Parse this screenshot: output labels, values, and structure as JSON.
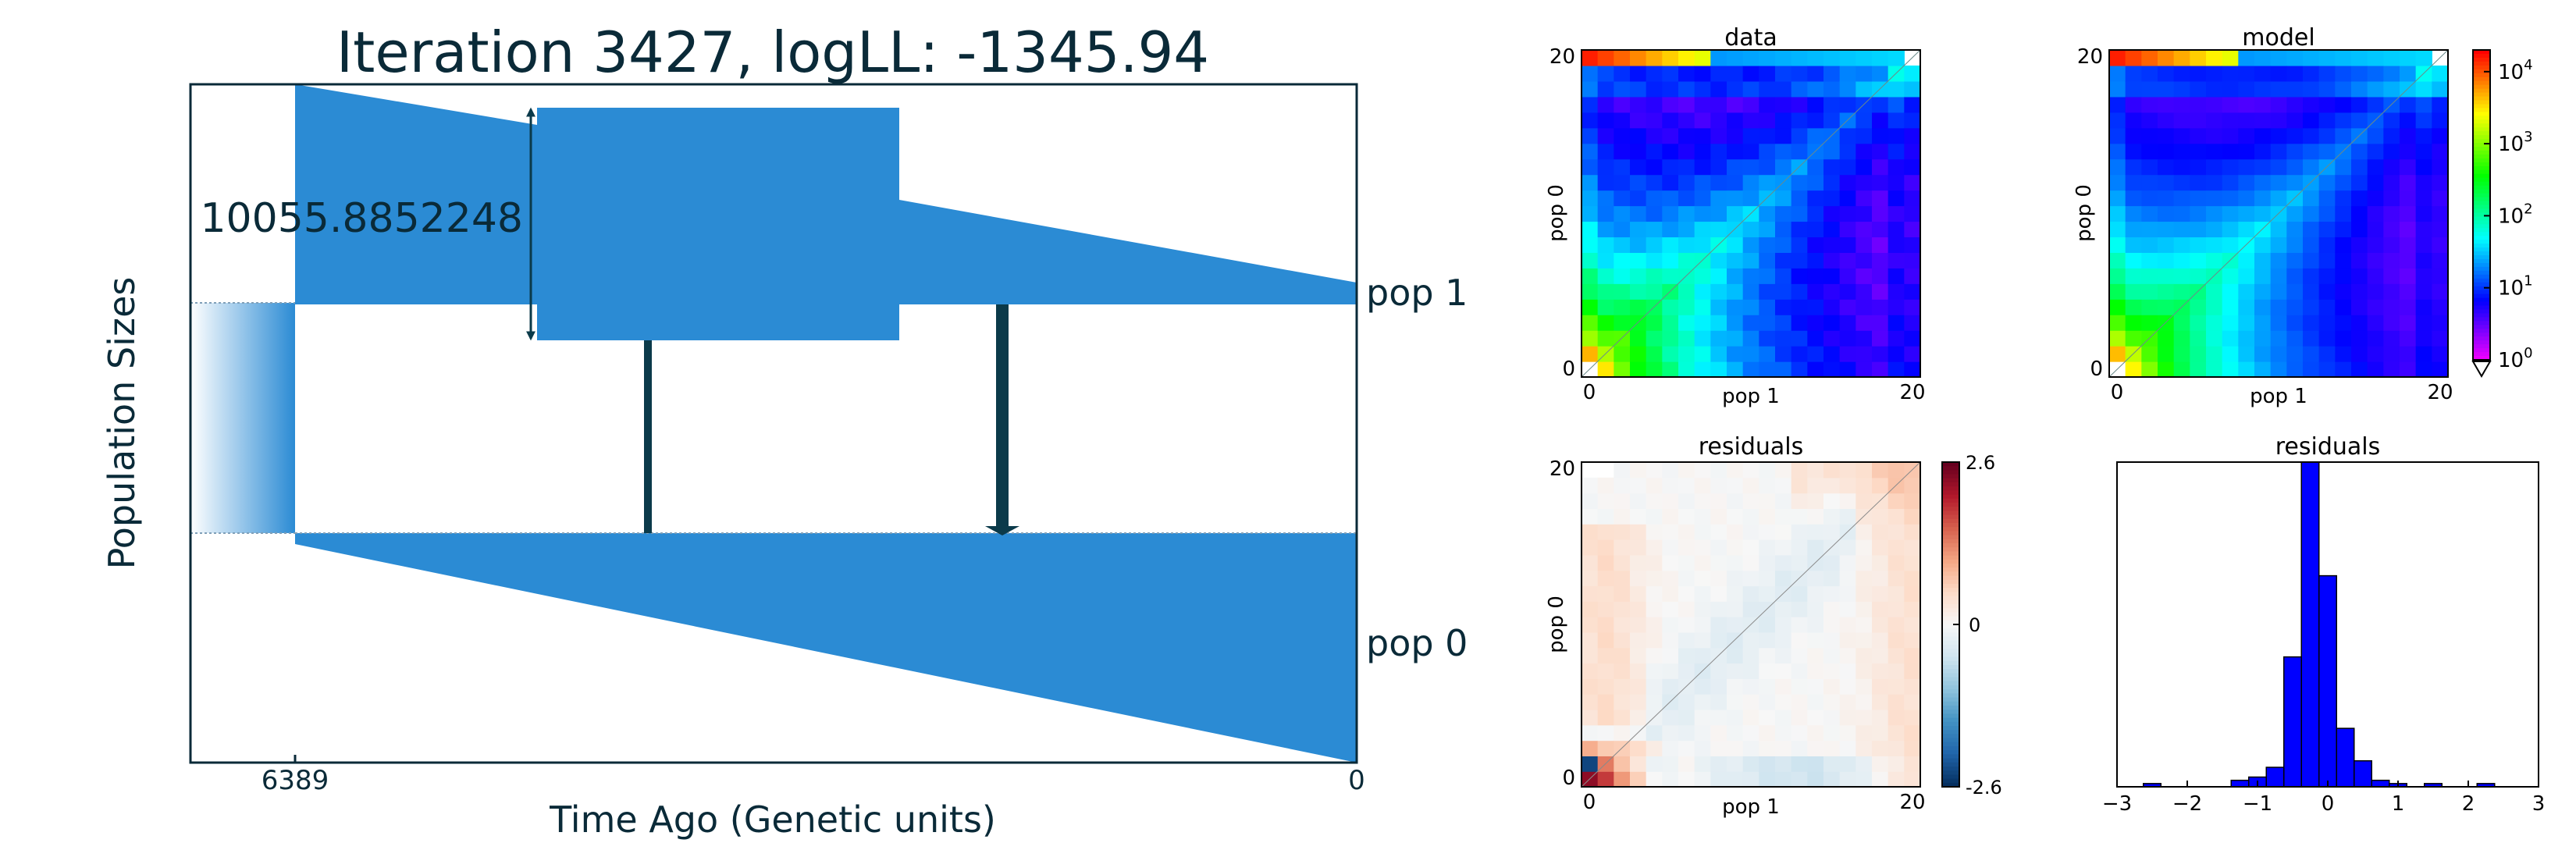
{
  "chart_data": [
    {
      "type": "demographic-model",
      "title": "Iteration 3427, logLL:   -1345.94",
      "xlabel": "Time Ago (Genetic units)",
      "ylabel": "Population Sizes",
      "x_ticks": [
        "6389",
        "0"
      ],
      "size_annotation": "10055.8852248",
      "populations": [
        {
          "name": "pop 1"
        },
        {
          "name": "pop 0"
        }
      ],
      "colors": {
        "population": "#2b8bd4",
        "migration": "#0b3a4a",
        "text": "#0a2a38"
      }
    },
    {
      "type": "heatmap",
      "title": "data",
      "xlabel": "pop 1",
      "ylabel": "pop 0",
      "x_ticks": [
        "0",
        "20"
      ],
      "y_ticks": [
        "0",
        "20"
      ],
      "grid_size": 21,
      "scale": "log",
      "colormap": "hsv",
      "masked_cells": [
        [
          0,
          0
        ],
        [
          20,
          20
        ]
      ]
    },
    {
      "type": "heatmap",
      "title": "model",
      "xlabel": "pop 1",
      "ylabel": "pop 0",
      "x_ticks": [
        "0",
        "20"
      ],
      "y_ticks": [
        "0",
        "20"
      ],
      "grid_size": 21,
      "scale": "log",
      "colormap": "hsv",
      "masked_cells": [
        [
          0,
          0
        ],
        [
          20,
          20
        ]
      ]
    },
    {
      "type": "colorbar",
      "scale": "log",
      "range": [
        1,
        20000
      ],
      "ticks": [
        {
          "base": "10",
          "exp": "4",
          "value": 10000
        },
        {
          "base": "10",
          "exp": "3",
          "value": 1000
        },
        {
          "base": "10",
          "exp": "2",
          "value": 100
        },
        {
          "base": "10",
          "exp": "1",
          "value": 10
        },
        {
          "base": "10",
          "exp": "0",
          "value": 1
        }
      ]
    },
    {
      "type": "heatmap",
      "title": "residuals",
      "xlabel": "pop 1",
      "ylabel": "pop 0",
      "x_ticks": [
        "0",
        "20"
      ],
      "y_ticks": [
        "0",
        "20"
      ],
      "grid_size": 21,
      "colormap": "RdBu_r",
      "vrange": [
        -2.6,
        2.6
      ]
    },
    {
      "type": "colorbar",
      "range": [
        -2.6,
        2.6
      ],
      "ticks": [
        "2.6",
        "0",
        "-2.6"
      ]
    },
    {
      "type": "bar",
      "title": "residuals",
      "x_ticks": [
        "−3",
        "−2",
        "−1",
        "0",
        "1",
        "2",
        "3"
      ],
      "xlim": [
        -3,
        3
      ],
      "bin_width": 0.25,
      "bins": [
        {
          "x": -2.5,
          "count": 1
        },
        {
          "x": -1.25,
          "count": 2
        },
        {
          "x": -1.0,
          "count": 3
        },
        {
          "x": -0.75,
          "count": 6
        },
        {
          "x": -0.5,
          "count": 40
        },
        {
          "x": -0.25,
          "count": 100
        },
        {
          "x": 0.0,
          "count": 65
        },
        {
          "x": 0.25,
          "count": 18
        },
        {
          "x": 0.5,
          "count": 8
        },
        {
          "x": 0.75,
          "count": 2
        },
        {
          "x": 1.0,
          "count": 1
        },
        {
          "x": 1.5,
          "count": 1
        },
        {
          "x": 2.25,
          "count": 1
        }
      ],
      "color": "#0000ff"
    }
  ]
}
